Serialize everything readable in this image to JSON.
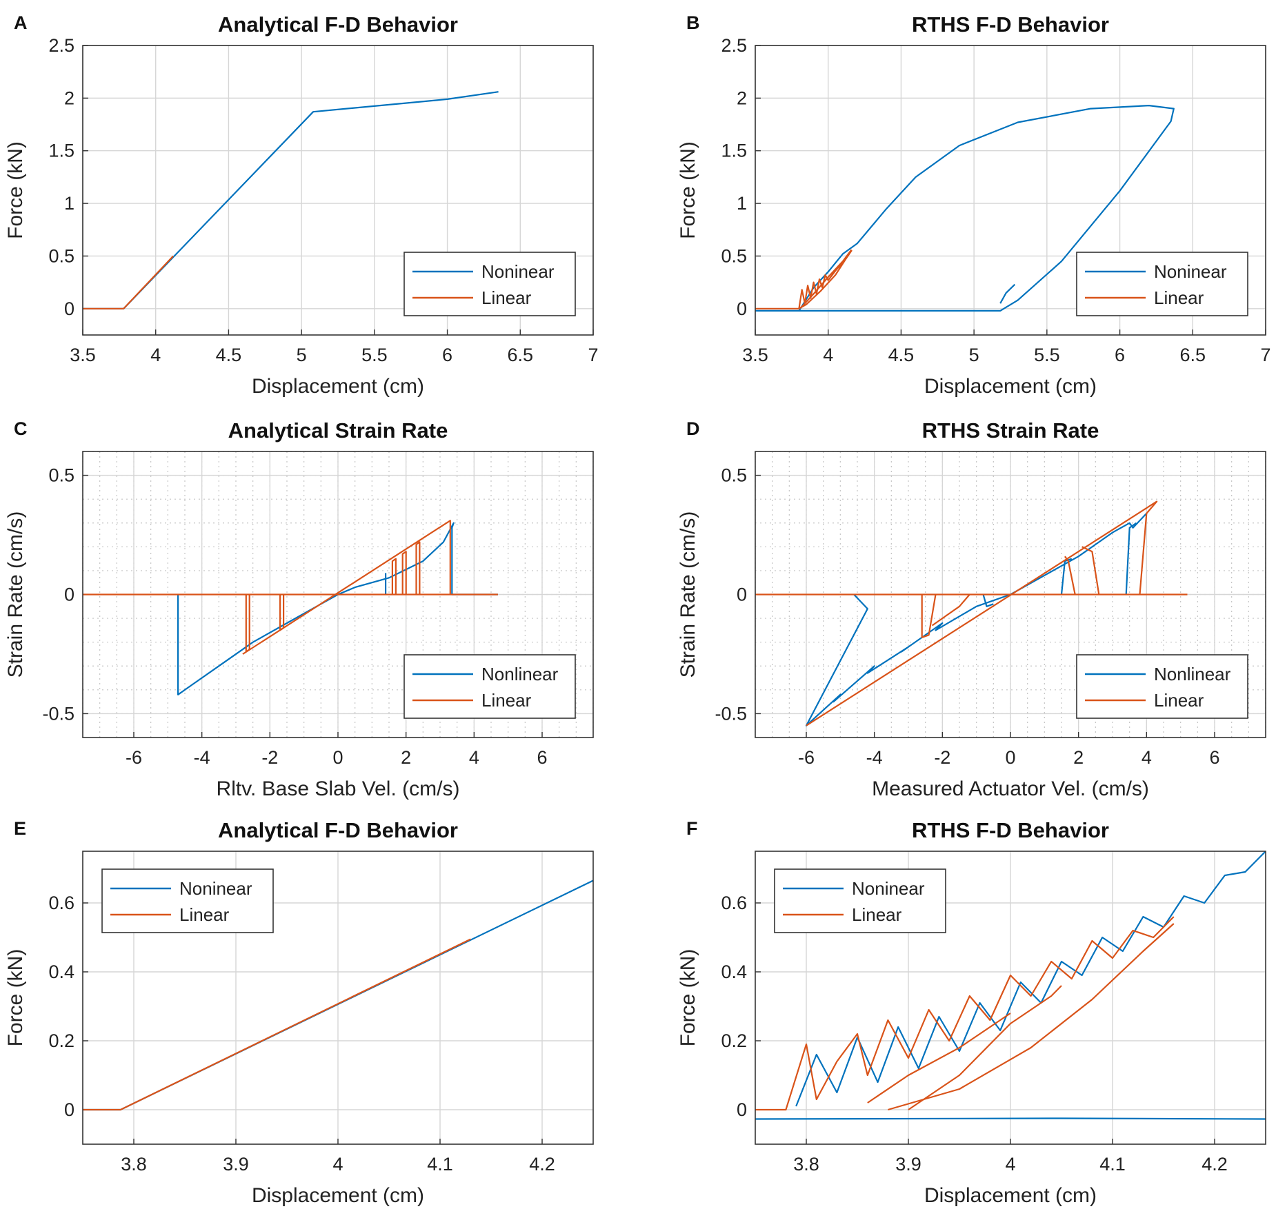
{
  "colors": {
    "nonlinear": "#0072BD",
    "linear": "#D95319",
    "grid": "#d6d6d6",
    "axis": "#333333"
  },
  "chart_data": [
    {
      "label": "A",
      "type": "line",
      "title": "Analytical F-D Behavior",
      "xlabel": "Displacement (cm)",
      "ylabel": "Force (kN)",
      "xlim": [
        3.5,
        7
      ],
      "ylim": [
        -0.25,
        2.5
      ],
      "xticks": [
        3.5,
        4,
        4.5,
        5,
        5.5,
        6,
        6.5,
        7
      ],
      "xtick_labels": [
        "3.5",
        "4",
        "4.5",
        "5",
        "5.5",
        "6",
        "6.5",
        "7"
      ],
      "yticks": [
        0,
        0.5,
        1,
        1.5,
        2,
        2.5
      ],
      "ytick_labels": [
        "0",
        "0.5",
        "1",
        "1.5",
        "2",
        "2.5"
      ],
      "minor_grid": false,
      "legend": {
        "position": "lower-right",
        "entries": [
          "Noninear",
          "Linear"
        ]
      },
      "series": [
        {
          "name": "Noninear",
          "color": "nonlinear",
          "x": [
            3.5,
            3.78,
            5.08,
            6.0,
            6.35
          ],
          "y": [
            0,
            0,
            1.87,
            1.99,
            2.06
          ]
        },
        {
          "name": "Linear",
          "color": "linear",
          "x": [
            3.5,
            3.78,
            4.12
          ],
          "y": [
            0,
            0,
            0.5
          ]
        }
      ]
    },
    {
      "label": "B",
      "type": "line",
      "title": "RTHS F-D Behavior",
      "xlabel": "Displacement (cm)",
      "ylabel": "Force (kN)",
      "xlim": [
        3.5,
        7
      ],
      "ylim": [
        -0.25,
        2.5
      ],
      "xticks": [
        3.5,
        4,
        4.5,
        5,
        5.5,
        6,
        6.5,
        7
      ],
      "xtick_labels": [
        "3.5",
        "4",
        "4.5",
        "5",
        "5.5",
        "6",
        "6.5",
        "7"
      ],
      "yticks": [
        0,
        0.5,
        1,
        1.5,
        2,
        2.5
      ],
      "ytick_labels": [
        "0",
        "0.5",
        "1",
        "1.5",
        "2",
        "2.5"
      ],
      "minor_grid": false,
      "legend": {
        "position": "lower-right",
        "entries": [
          "Noninear",
          "Linear"
        ]
      },
      "series": [
        {
          "name": "Noninear",
          "color": "nonlinear",
          "x": [
            3.5,
            3.8,
            3.9,
            4.0,
            4.1,
            4.2,
            4.4,
            4.6,
            4.9,
            5.3,
            5.8,
            6.2,
            6.37,
            6.35,
            6.0,
            5.6,
            5.3,
            5.18,
            5.15,
            3.5
          ],
          "y": [
            -0.02,
            -0.02,
            0.2,
            0.35,
            0.52,
            0.62,
            0.95,
            1.25,
            1.55,
            1.77,
            1.9,
            1.93,
            1.9,
            1.78,
            1.12,
            0.45,
            0.08,
            -0.02,
            -0.02,
            -0.02
          ]
        },
        {
          "name": "Noninear",
          "color": "nonlinear",
          "x": [
            5.18,
            5.22,
            5.28
          ],
          "y": [
            0.05,
            0.15,
            0.23
          ]
        },
        {
          "name": "Linear",
          "color": "linear",
          "x": [
            3.5,
            3.8,
            3.82,
            3.84,
            3.86,
            3.88,
            3.9,
            3.92,
            3.94,
            3.96,
            3.98,
            4.0,
            4.05,
            4.1,
            4.16,
            4.12,
            4.05,
            3.95,
            3.85,
            3.8,
            3.82,
            3.9,
            4.0,
            4.1,
            4.16
          ],
          "y": [
            0,
            0,
            0.18,
            0.05,
            0.22,
            0.1,
            0.25,
            0.14,
            0.28,
            0.2,
            0.32,
            0.27,
            0.36,
            0.44,
            0.55,
            0.47,
            0.32,
            0.17,
            0.04,
            0,
            0.02,
            0.14,
            0.3,
            0.45,
            0.56
          ]
        }
      ]
    },
    {
      "label": "C",
      "type": "line",
      "title": "Analytical Strain Rate",
      "xlabel": "Rltv. Base Slab Vel. (cm/s)",
      "ylabel": "Strain Rate (cm/s)",
      "xlim": [
        -7.5,
        7.5
      ],
      "ylim": [
        -0.6,
        0.6
      ],
      "xticks": [
        -6,
        -4,
        -2,
        0,
        2,
        4,
        6
      ],
      "xtick_labels": [
        "-6",
        "-4",
        "-2",
        "0",
        "2",
        "4",
        "6"
      ],
      "yticks": [
        -0.5,
        0,
        0.5
      ],
      "ytick_labels": [
        "-0.5",
        "0",
        "0.5"
      ],
      "minor_grid": true,
      "legend": {
        "position": "lower-right",
        "entries": [
          "Nonlinear",
          "Linear"
        ]
      },
      "series": [
        {
          "name": "Nonlinear",
          "color": "nonlinear",
          "x": [
            -4.7,
            -4.7,
            -4.3,
            -3.5,
            -2.5,
            -1.5,
            -0.5,
            0,
            0.5,
            1.5,
            2.5,
            3.1,
            3.4,
            3.35,
            3.35,
            4.7
          ],
          "y": [
            0,
            -0.42,
            -0.38,
            -0.3,
            -0.2,
            -0.12,
            -0.04,
            0,
            0.03,
            0.07,
            0.14,
            0.22,
            0.3,
            0.28,
            0,
            0
          ]
        },
        {
          "name": "Nonlinear",
          "color": "nonlinear",
          "x": [
            1.4,
            1.4
          ],
          "y": [
            0,
            0.09
          ]
        },
        {
          "name": "Linear",
          "color": "linear",
          "x": [
            -7.5,
            4.7
          ],
          "y": [
            0,
            0
          ]
        },
        {
          "name": "Linear",
          "color": "linear",
          "x": [
            -2.8,
            3.3,
            3.3
          ],
          "y": [
            -0.25,
            0.31,
            0
          ]
        },
        {
          "name": "Linear",
          "color": "linear",
          "x": [
            -2.7,
            -2.7,
            -2.6,
            -2.6
          ],
          "y": [
            0,
            -0.24,
            -0.23,
            0
          ]
        },
        {
          "name": "Linear",
          "color": "linear",
          "x": [
            -1.7,
            -1.7,
            -1.6,
            -1.6
          ],
          "y": [
            0,
            -0.15,
            -0.14,
            0
          ]
        },
        {
          "name": "Linear",
          "color": "linear",
          "x": [
            1.6,
            1.6,
            1.7,
            1.7
          ],
          "y": [
            0,
            0.14,
            0.15,
            0
          ]
        },
        {
          "name": "Linear",
          "color": "linear",
          "x": [
            1.9,
            1.9,
            2.0,
            2.0
          ],
          "y": [
            0,
            0.17,
            0.18,
            0
          ]
        },
        {
          "name": "Linear",
          "color": "linear",
          "x": [
            2.3,
            2.3,
            2.4,
            2.4
          ],
          "y": [
            0,
            0.21,
            0.22,
            0
          ]
        }
      ]
    },
    {
      "label": "D",
      "type": "line",
      "title": "RTHS Strain Rate",
      "xlabel": "Measured Actuator Vel. (cm/s)",
      "ylabel": "Strain Rate (cm/s)",
      "xlim": [
        -7.5,
        7.5
      ],
      "ylim": [
        -0.6,
        0.6
      ],
      "xticks": [
        -6,
        -4,
        -2,
        0,
        2,
        4,
        6
      ],
      "xtick_labels": [
        "-6",
        "-4",
        "-2",
        "0",
        "2",
        "4",
        "6"
      ],
      "yticks": [
        -0.5,
        0,
        0.5
      ],
      "ytick_labels": [
        "-0.5",
        "0",
        "0.5"
      ],
      "minor_grid": true,
      "legend": {
        "position": "lower-right",
        "entries": [
          "Nonlinear",
          "Linear"
        ]
      },
      "series": [
        {
          "name": "Nonlinear",
          "color": "nonlinear",
          "x": [
            -4.6,
            -4.2,
            -6.0,
            -5.0,
            -5.2,
            -4.0,
            -4.2,
            -3.0,
            -3.2,
            -2.0,
            -2.2,
            -1.0,
            0,
            1.0,
            2.0,
            3.0,
            3.5,
            3.6,
            4.0
          ],
          "y": [
            0,
            -0.06,
            -0.55,
            -0.42,
            -0.45,
            -0.3,
            -0.33,
            -0.22,
            -0.24,
            -0.12,
            -0.15,
            -0.05,
            0,
            0.08,
            0.16,
            0.26,
            0.3,
            0.28,
            0.34
          ]
        },
        {
          "name": "Nonlinear",
          "color": "nonlinear",
          "x": [
            3.4,
            3.5,
            3.7
          ],
          "y": [
            0,
            0.28,
            0.3
          ]
        },
        {
          "name": "Nonlinear",
          "color": "nonlinear",
          "x": [
            1.5,
            1.6,
            1.8
          ],
          "y": [
            0,
            0.14,
            0.15
          ]
        },
        {
          "name": "Nonlinear",
          "color": "nonlinear",
          "x": [
            -0.8,
            -0.7,
            -0.5
          ],
          "y": [
            0,
            -0.05,
            -0.04
          ]
        },
        {
          "name": "Linear",
          "color": "linear",
          "x": [
            -7.5,
            5.2
          ],
          "y": [
            0,
            0
          ]
        },
        {
          "name": "Linear",
          "color": "linear",
          "x": [
            -6.0,
            4.3,
            4.0,
            3.8
          ],
          "y": [
            -0.55,
            0.39,
            0.34,
            0
          ]
        },
        {
          "name": "Linear",
          "color": "linear",
          "x": [
            2.6,
            2.4,
            2.1
          ],
          "y": [
            0,
            0.18,
            0.2
          ]
        },
        {
          "name": "Linear",
          "color": "linear",
          "x": [
            1.9,
            1.7,
            1.6
          ],
          "y": [
            0,
            0.14,
            0.16
          ]
        },
        {
          "name": "Linear",
          "color": "linear",
          "x": [
            -2.6,
            -2.6,
            -2.4,
            -2.2
          ],
          "y": [
            0,
            -0.18,
            -0.17,
            0
          ]
        },
        {
          "name": "Linear",
          "color": "linear",
          "x": [
            -2.3,
            -2.0,
            -1.5,
            -1.2
          ],
          "y": [
            -0.13,
            -0.1,
            -0.05,
            0
          ]
        }
      ]
    },
    {
      "label": "E",
      "type": "line",
      "title": "Analytical F-D Behavior",
      "xlabel": "Displacement (cm)",
      "ylabel": "Force (kN)",
      "xlim": [
        3.75,
        4.25
      ],
      "ylim": [
        -0.1,
        0.75
      ],
      "xticks": [
        3.8,
        3.9,
        4.0,
        4.1,
        4.2
      ],
      "xtick_labels": [
        "3.8",
        "3.9",
        "4",
        "4.1",
        "4.2"
      ],
      "yticks": [
        0,
        0.2,
        0.4,
        0.6
      ],
      "ytick_labels": [
        "0",
        "0.2",
        "0.4",
        "0.6"
      ],
      "minor_grid": false,
      "legend": {
        "position": "top-left",
        "entries": [
          "Noninear",
          "Linear"
        ]
      },
      "series": [
        {
          "name": "Noninear",
          "color": "nonlinear",
          "x": [
            3.75,
            3.787,
            4.25
          ],
          "y": [
            0,
            0,
            0.665
          ]
        },
        {
          "name": "Linear",
          "color": "linear",
          "x": [
            3.75,
            3.787,
            4.13
          ],
          "y": [
            0,
            0,
            0.495
          ]
        }
      ]
    },
    {
      "label": "F",
      "type": "line",
      "title": "RTHS F-D Behavior",
      "xlabel": "Displacement (cm)",
      "ylabel": "Force (kN)",
      "xlim": [
        3.75,
        4.25
      ],
      "ylim": [
        -0.1,
        0.75
      ],
      "xticks": [
        3.8,
        3.9,
        4.0,
        4.1,
        4.2
      ],
      "xtick_labels": [
        "3.8",
        "3.9",
        "4",
        "4.1",
        "4.2"
      ],
      "yticks": [
        0,
        0.2,
        0.4,
        0.6
      ],
      "ytick_labels": [
        "0",
        "0.2",
        "0.4",
        "0.6"
      ],
      "minor_grid": false,
      "legend": {
        "position": "top-left",
        "entries": [
          "Noninear",
          "Linear"
        ]
      },
      "series": [
        {
          "name": "Noninear",
          "color": "nonlinear",
          "x": [
            3.75,
            4.05,
            4.25
          ],
          "y": [
            -0.027,
            -0.025,
            -0.027
          ]
        },
        {
          "name": "Noninear",
          "color": "nonlinear",
          "x": [
            3.79,
            3.81,
            3.83,
            3.85,
            3.87,
            3.89,
            3.91,
            3.93,
            3.95,
            3.97,
            3.99,
            4.01,
            4.03,
            4.05,
            4.07,
            4.09,
            4.11,
            4.13,
            4.15,
            4.17,
            4.19,
            4.21,
            4.23,
            4.25
          ],
          "y": [
            0.01,
            0.16,
            0.05,
            0.21,
            0.08,
            0.24,
            0.12,
            0.27,
            0.17,
            0.31,
            0.23,
            0.37,
            0.31,
            0.43,
            0.39,
            0.5,
            0.46,
            0.56,
            0.53,
            0.62,
            0.6,
            0.68,
            0.69,
            0.75
          ]
        },
        {
          "name": "Linear",
          "color": "linear",
          "x": [
            3.75,
            3.78,
            3.8,
            3.81,
            3.83,
            3.85,
            3.86,
            3.88,
            3.9,
            3.92,
            3.94,
            3.96,
            3.98,
            4.0,
            4.02,
            4.04,
            4.06,
            4.08,
            4.1,
            4.12,
            4.14,
            4.16
          ],
          "y": [
            0,
            0,
            0.19,
            0.03,
            0.14,
            0.22,
            0.1,
            0.26,
            0.15,
            0.29,
            0.2,
            0.33,
            0.26,
            0.39,
            0.33,
            0.43,
            0.38,
            0.49,
            0.44,
            0.52,
            0.5,
            0.56
          ]
        },
        {
          "name": "Linear",
          "color": "linear",
          "x": [
            3.88,
            3.95,
            4.02,
            4.08,
            4.13,
            4.16
          ],
          "y": [
            0.0,
            0.06,
            0.18,
            0.32,
            0.46,
            0.54
          ]
        },
        {
          "name": "Linear",
          "color": "linear",
          "x": [
            3.9,
            3.95,
            4.0,
            4.04,
            4.05
          ],
          "y": [
            0.0,
            0.1,
            0.25,
            0.33,
            0.36
          ]
        },
        {
          "name": "Linear",
          "color": "linear",
          "x": [
            3.86,
            3.9,
            3.95,
            3.98,
            4.0
          ],
          "y": [
            0.02,
            0.1,
            0.18,
            0.24,
            0.28
          ]
        }
      ]
    }
  ]
}
